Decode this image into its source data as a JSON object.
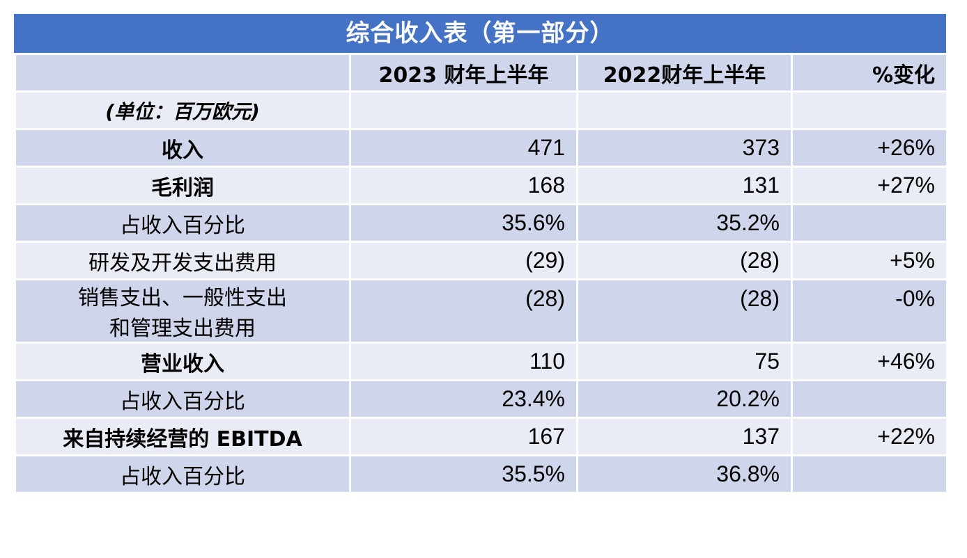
{
  "title": "综合收入表（第一部分）",
  "header": {
    "col1": "",
    "col2": "2023 财年上半年",
    "col3": "2022财年上半年",
    "col4": "%变化"
  },
  "unit_label": "(单位：百万欧元)",
  "rows": [
    {
      "label": "收入",
      "fy2023": "471",
      "fy2022": "373",
      "change": "+26%"
    },
    {
      "label": "毛利润",
      "fy2023": "168",
      "fy2022": "131",
      "change": "+27%"
    },
    {
      "label": "占收入百分比",
      "fy2023": "35.6%",
      "fy2022": "35.2%",
      "change": ""
    },
    {
      "label": "研发及开发支出费用",
      "fy2023": "(29)",
      "fy2022": "(28)",
      "change": "+5%"
    },
    {
      "label_line1": "销售支出、一般性支出",
      "label_line2": "和管理支出费用",
      "fy2023": "(28)",
      "fy2022": "(28)",
      "change": "-0%"
    },
    {
      "label": "营业收入",
      "fy2023": "110",
      "fy2022": "75",
      "change": "+46%"
    },
    {
      "label": "占收入百分比",
      "fy2023": "23.4%",
      "fy2022": "20.2%",
      "change": ""
    },
    {
      "label": "来自持续经营的 EBITDA",
      "fy2023": "167",
      "fy2022": "137",
      "change": "+22%"
    },
    {
      "label": "占收入百分比",
      "fy2023": "35.5%",
      "fy2022": "36.8%",
      "change": ""
    }
  ]
}
